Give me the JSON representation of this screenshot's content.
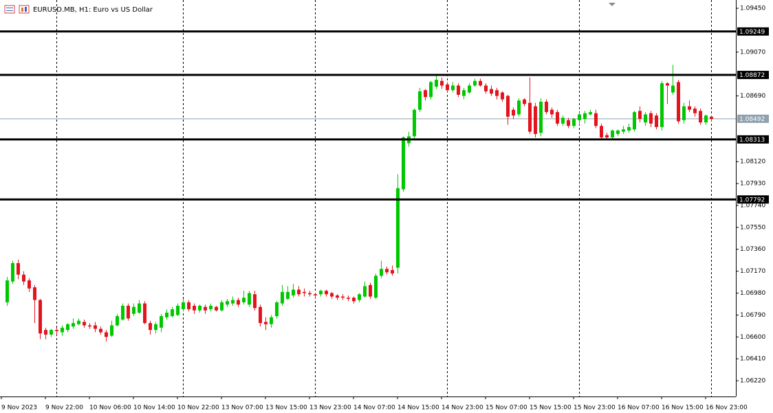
{
  "chart_data": {
    "type": "candlestick",
    "title": "EURUSD.MB, H1:  Euro vs US Dollar",
    "categories": [
      "9 Nov 2023",
      null,
      null,
      null,
      null,
      null,
      null,
      null,
      "9 Nov 22:00",
      null,
      null,
      null,
      null,
      null,
      null,
      null,
      "10 Nov 06:00",
      null,
      null,
      null,
      null,
      null,
      null,
      null,
      "10 Nov 14:00",
      null,
      null,
      null,
      null,
      null,
      null,
      null,
      "10 Nov 22:00",
      null,
      null,
      null,
      null,
      null,
      null,
      null,
      "13 Nov 07:00",
      null,
      null,
      null,
      null,
      null,
      null,
      null,
      "13 Nov 15:00",
      null,
      null,
      null,
      null,
      null,
      null,
      null,
      "13 Nov 23:00",
      null,
      null,
      null,
      null,
      null,
      null,
      null,
      "14 Nov 07:00",
      null,
      null,
      null,
      null,
      null,
      null,
      null,
      "14 Nov 15:00",
      null,
      null,
      null,
      null,
      null,
      null,
      null,
      "14 Nov 23:00",
      null,
      null,
      null,
      null,
      null,
      null,
      null,
      "15 Nov 07:00",
      null,
      null,
      null,
      null,
      null,
      null,
      null,
      "15 Nov 15:00",
      null,
      null,
      null,
      null,
      null,
      null,
      null,
      "15 Nov 23:00",
      null,
      null,
      null,
      null,
      null,
      null,
      null,
      "16 Nov 07:00",
      null,
      null,
      null,
      null,
      null,
      null,
      null,
      "16 Nov 15:00",
      null,
      null,
      null,
      null,
      null,
      null,
      null,
      "16 Nov 23:00"
    ],
    "open": [
      1.069,
      1.0708,
      1.0724,
      1.0714,
      1.0709,
      1.0703,
      1.0692,
      1.0666,
      1.0662,
      1.0666,
      1.0664,
      1.0666,
      1.0669,
      1.0671,
      1.0673,
      1.067,
      1.067,
      1.0667,
      1.0664,
      1.0661,
      1.067,
      1.0675,
      1.0687,
      1.068,
      1.0681,
      1.0689,
      1.0672,
      1.0666,
      1.0668,
      1.0677,
      1.0678,
      1.0679,
      1.0684,
      1.069,
      1.0687,
      1.0683,
      1.0686,
      1.0684,
      1.0686,
      1.0683,
      1.0688,
      1.0689,
      1.0692,
      1.069,
      1.0688,
      1.0697,
      1.0686,
      1.0673,
      1.0671,
      1.0678,
      1.0689,
      1.0693,
      1.0696,
      1.0701,
      1.0699,
      1.0698,
      1.0697,
      1.0697,
      1.07,
      1.0698,
      1.0696,
      1.0695,
      1.0694,
      1.0694,
      1.0692,
      1.0695,
      1.0705,
      1.0694,
      1.0713,
      1.0719,
      1.0718,
      1.072,
      1.0788,
      1.0828,
      1.0834,
      1.0857,
      1.0874,
      1.0868,
      1.0877,
      1.0882,
      1.0879,
      1.0874,
      1.0878,
      1.0869,
      1.0872,
      1.0878,
      1.0882,
      1.0878,
      1.0875,
      1.0874,
      1.0872,
      1.0869,
      1.0857,
      1.0853,
      1.0866,
      1.0863,
      1.086,
      1.0837,
      1.0864,
      1.0857,
      1.0855,
      1.0845,
      1.0848,
      1.0843,
      1.0848,
      1.0849,
      1.0853,
      1.0854,
      1.0843,
      1.0835,
      1.0833,
      1.0836,
      1.0838,
      1.0839,
      1.084,
      1.0856,
      1.0846,
      1.0854,
      1.0852,
      1.0842,
      1.088,
      1.0872,
      1.0881,
      1.0848,
      1.086,
      1.0858,
      1.0856,
      1.0846,
      1.0851
    ],
    "high": [
      1.0712,
      1.0726,
      1.0727,
      1.0717,
      1.0711,
      1.0705,
      1.0693,
      1.0668,
      1.0667,
      1.0668,
      1.067,
      1.0672,
      1.0676,
      1.0676,
      1.0675,
      1.0672,
      1.0673,
      1.0669,
      1.0666,
      1.0674,
      1.068,
      1.0689,
      1.0689,
      1.0689,
      1.0692,
      1.0691,
      1.0674,
      1.0673,
      1.068,
      1.0684,
      1.0686,
      1.0689,
      1.0693,
      1.0692,
      1.0689,
      1.0688,
      1.0688,
      1.0689,
      1.0687,
      1.0692,
      1.0693,
      1.0695,
      1.0694,
      1.07,
      1.07,
      1.07,
      1.0688,
      1.0677,
      1.0679,
      1.0691,
      1.0705,
      1.0704,
      1.0706,
      1.0704,
      1.0702,
      1.07,
      1.0698,
      1.0701,
      1.0701,
      1.0699,
      1.0697,
      1.0697,
      1.0696,
      1.0695,
      1.0698,
      1.0708,
      1.0707,
      1.0715,
      1.0726,
      1.0721,
      1.0722,
      1.0801,
      1.0834,
      1.0838,
      1.0858,
      1.0876,
      1.0875,
      1.0882,
      1.0887,
      1.0885,
      1.0881,
      1.0881,
      1.088,
      1.0876,
      1.088,
      1.0884,
      1.0884,
      1.088,
      1.0878,
      1.0876,
      1.0873,
      1.087,
      1.0859,
      1.0867,
      1.0867,
      1.0885,
      1.0863,
      1.0867,
      1.0866,
      1.0859,
      1.0857,
      1.0852,
      1.085,
      1.085,
      1.0855,
      1.0856,
      1.0857,
      1.0857,
      1.0845,
      1.0837,
      1.084,
      1.084,
      1.0843,
      1.0845,
      1.0856,
      1.086,
      1.0855,
      1.0856,
      1.0854,
      1.0882,
      1.0881,
      1.0896,
      1.0883,
      1.0863,
      1.0865,
      1.086,
      1.0858,
      1.0853,
      1.0852
    ],
    "low": [
      1.0687,
      1.0706,
      1.071,
      1.0705,
      1.0699,
      1.0672,
      1.0658,
      1.0658,
      1.066,
      1.0662,
      1.0661,
      1.0664,
      1.0667,
      1.067,
      1.0668,
      1.0667,
      1.0664,
      1.0662,
      1.0656,
      1.066,
      1.0669,
      1.0674,
      1.0674,
      1.0678,
      1.068,
      1.0671,
      1.0662,
      1.0663,
      1.0664,
      1.0675,
      1.0677,
      1.0678,
      1.0682,
      1.0682,
      1.068,
      1.0681,
      1.068,
      1.0682,
      1.0682,
      1.0682,
      1.0686,
      1.0687,
      1.0686,
      1.0688,
      1.0686,
      1.0683,
      1.0669,
      1.0666,
      1.0668,
      1.0676,
      1.0687,
      1.0692,
      1.0694,
      1.0695,
      1.0695,
      1.0695,
      1.0693,
      1.0695,
      1.0695,
      1.0693,
      1.0692,
      1.0692,
      1.0691,
      1.0689,
      1.069,
      1.0694,
      1.0693,
      1.0693,
      1.0711,
      1.0714,
      1.0713,
      1.0715,
      1.0786,
      1.0825,
      1.0831,
      1.0855,
      1.0865,
      1.0866,
      1.0875,
      1.0875,
      1.0872,
      1.0872,
      1.0868,
      1.0866,
      1.0871,
      1.0877,
      1.0877,
      1.0871,
      1.0869,
      1.0866,
      1.0864,
      1.0844,
      1.0849,
      1.0851,
      1.086,
      1.0836,
      1.0833,
      1.0834,
      1.0853,
      1.085,
      1.0843,
      1.0843,
      1.0841,
      1.0841,
      1.0844,
      1.0845,
      1.0852,
      1.0841,
      1.0831,
      1.0831,
      1.0831,
      1.0834,
      1.0836,
      1.0837,
      1.0838,
      1.0846,
      1.0843,
      1.0842,
      1.084,
      1.0839,
      1.0862,
      1.087,
      1.0845,
      1.0845,
      1.0855,
      1.0851,
      1.0844,
      1.0844,
      1.0847
    ],
    "close": [
      1.0709,
      1.0724,
      1.0714,
      1.0708,
      1.0702,
      1.0692,
      1.0663,
      1.0662,
      1.0666,
      1.0665,
      1.0668,
      1.0671,
      1.0672,
      1.0674,
      1.067,
      1.0669,
      1.0667,
      1.0664,
      1.066,
      1.067,
      1.0678,
      1.0687,
      1.0676,
      1.0686,
      1.0689,
      1.0672,
      1.0666,
      1.0671,
      1.0678,
      1.0681,
      1.0684,
      1.0687,
      1.069,
      1.0684,
      1.0683,
      1.0687,
      1.0683,
      1.0687,
      1.0683,
      1.069,
      1.0691,
      1.0692,
      1.0688,
      1.0694,
      1.0698,
      1.0685,
      1.0672,
      1.0671,
      1.0677,
      1.069,
      1.0699,
      1.0699,
      1.0701,
      1.0697,
      1.0698,
      1.0697,
      1.0696,
      1.07,
      1.0697,
      1.0695,
      1.0694,
      1.0694,
      1.0693,
      1.0691,
      1.0697,
      1.0704,
      1.0695,
      1.0713,
      1.0719,
      1.0716,
      1.0715,
      1.0789,
      1.0833,
      1.0834,
      1.0857,
      1.0873,
      1.0868,
      1.0881,
      1.0883,
      1.0878,
      1.0874,
      1.0878,
      1.087,
      1.0874,
      1.0878,
      1.0882,
      1.0878,
      1.0873,
      1.0871,
      1.0869,
      1.0866,
      1.0851,
      1.0852,
      1.0865,
      1.0862,
      1.0838,
      1.0836,
      1.0864,
      1.0855,
      1.0853,
      1.0845,
      1.085,
      1.0843,
      1.0849,
      1.0853,
      1.0854,
      1.0855,
      1.0843,
      1.0833,
      1.0833,
      1.0839,
      1.0839,
      1.084,
      1.0842,
      1.0855,
      1.0849,
      1.0853,
      1.0845,
      1.0842,
      1.088,
      1.0878,
      1.0878,
      1.0847,
      1.086,
      1.0857,
      1.0854,
      1.0846,
      1.0852,
      1.0849
    ],
    "up_color": "#00c800",
    "down_color": "#e3141e",
    "ylim": [
      1.06083,
      1.09522
    ],
    "yticks": [
      {
        "value": 1.0945,
        "label": "1.09450"
      },
      {
        "value": 1.0907,
        "label": "1.09070"
      },
      {
        "value": 1.0869,
        "label": "1.08690"
      },
      {
        "value": 1.0812,
        "label": "1.08120"
      },
      {
        "value": 1.0793,
        "label": "1.07930"
      },
      {
        "value": 1.0774,
        "label": "1.07740"
      },
      {
        "value": 1.0755,
        "label": "1.07550"
      },
      {
        "value": 1.0736,
        "label": "1.07360"
      },
      {
        "value": 1.0717,
        "label": "1.07170"
      },
      {
        "value": 1.0698,
        "label": "1.06980"
      },
      {
        "value": 1.0679,
        "label": "1.06790"
      },
      {
        "value": 1.066,
        "label": "1.06600"
      },
      {
        "value": 1.0641,
        "label": "1.06410"
      },
      {
        "value": 1.0622,
        "label": "1.06220"
      }
    ],
    "levels": [
      1.09249,
      1.08872,
      1.08313,
      1.07792
    ],
    "current_price": 1.08492
  }
}
